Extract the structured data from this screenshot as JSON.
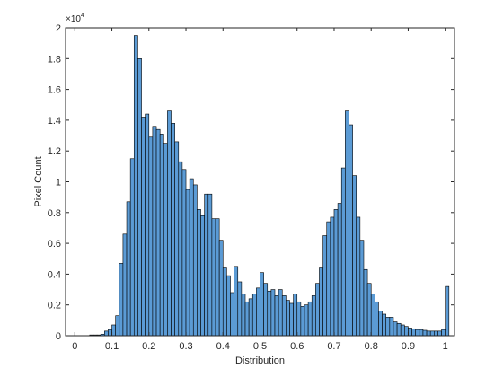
{
  "chart_data": {
    "type": "bar",
    "xlabel": "Distribution",
    "ylabel": "Pixel Count",
    "exponent_base": "×10",
    "exponent_power": "4",
    "xlim": [
      -0.025,
      1.025
    ],
    "ylim": [
      0,
      20000
    ],
    "xticks": [
      0,
      0.1,
      0.2,
      0.3,
      0.4,
      0.5,
      0.6,
      0.7,
      0.8,
      0.9,
      1
    ],
    "xtick_labels": [
      "0",
      "0.1",
      "0.2",
      "0.3",
      "0.4",
      "0.5",
      "0.6",
      "0.7",
      "0.8",
      "0.9",
      "1"
    ],
    "yticks": [
      0,
      2000,
      4000,
      6000,
      8000,
      10000,
      12000,
      14000,
      16000,
      18000,
      20000
    ],
    "ytick_labels": [
      "0",
      "0.2",
      "0.4",
      "0.6",
      "0.8",
      "1",
      "1.2",
      "1.4",
      "1.6",
      "1.8",
      "2"
    ],
    "bar_color": "#5b9bd5",
    "edge_color": "#000000",
    "bin_width": 0.01,
    "bins_start": [
      0,
      0.01,
      0.02,
      0.03,
      0.04,
      0.05,
      0.06,
      0.07,
      0.08,
      0.09,
      0.1,
      0.11,
      0.12,
      0.13,
      0.14,
      0.15,
      0.16,
      0.17,
      0.18,
      0.19,
      0.2,
      0.21,
      0.22,
      0.23,
      0.24,
      0.25,
      0.26,
      0.27,
      0.28,
      0.29,
      0.3,
      0.31,
      0.32,
      0.33,
      0.34,
      0.35,
      0.36,
      0.37,
      0.38,
      0.39,
      0.4,
      0.41,
      0.42,
      0.43,
      0.44,
      0.45,
      0.46,
      0.47,
      0.48,
      0.49,
      0.5,
      0.51,
      0.52,
      0.53,
      0.54,
      0.55,
      0.56,
      0.57,
      0.58,
      0.59,
      0.6,
      0.61,
      0.62,
      0.63,
      0.64,
      0.65,
      0.66,
      0.67,
      0.68,
      0.69,
      0.7,
      0.71,
      0.72,
      0.73,
      0.74,
      0.75,
      0.76,
      0.77,
      0.78,
      0.79,
      0.8,
      0.81,
      0.82,
      0.83,
      0.84,
      0.85,
      0.86,
      0.87,
      0.88,
      0.89,
      0.9,
      0.91,
      0.92,
      0.93,
      0.94,
      0.95,
      0.96,
      0.97,
      0.98,
      0.99,
      1.0
    ],
    "values": [
      0,
      0,
      0,
      0,
      50,
      50,
      50,
      100,
      300,
      400,
      700,
      1300,
      4700,
      6600,
      8700,
      11500,
      19500,
      18000,
      14200,
      14400,
      12900,
      13600,
      13400,
      13100,
      12500,
      14600,
      13800,
      12600,
      11300,
      10800,
      9500,
      10200,
      9800,
      8200,
      7800,
      9200,
      9200,
      7600,
      7600,
      6200,
      4400,
      3900,
      2800,
      4500,
      3500,
      2700,
      2200,
      2400,
      2700,
      3100,
      4100,
      3400,
      2900,
      3000,
      2600,
      3000,
      2600,
      2300,
      2100,
      2700,
      2200,
      1900,
      2000,
      2200,
      2600,
      3400,
      4400,
      6500,
      7400,
      7700,
      8200,
      8600,
      10900,
      14600,
      13700,
      10400,
      7700,
      6200,
      4300,
      3400,
      2700,
      2200,
      1600,
      1400,
      1200,
      1200,
      900,
      800,
      700,
      600,
      500,
      450,
      400,
      400,
      350,
      300,
      300,
      300,
      300,
      400,
      3200
    ]
  }
}
